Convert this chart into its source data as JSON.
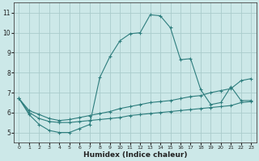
{
  "title": "",
  "xlabel": "Humidex (Indice chaleur)",
  "ylabel": "",
  "bg_color": "#cce8e8",
  "grid_color": "#aacccc",
  "line_color": "#2d7d7d",
  "xlim": [
    -0.5,
    23.5
  ],
  "ylim": [
    4.5,
    11.5
  ],
  "yticks": [
    5,
    6,
    7,
    8,
    9,
    10,
    11
  ],
  "xticks": [
    0,
    1,
    2,
    3,
    4,
    5,
    6,
    7,
    8,
    9,
    10,
    11,
    12,
    13,
    14,
    15,
    16,
    17,
    18,
    19,
    20,
    21,
    22,
    23
  ],
  "line_top_x": [
    0,
    1,
    2,
    3,
    4,
    5,
    6,
    7,
    8,
    9,
    10,
    11,
    12,
    13,
    14,
    15,
    16,
    17,
    18,
    19,
    20,
    21,
    22,
    23
  ],
  "line_top_y": [
    6.7,
    5.9,
    5.4,
    5.1,
    5.0,
    5.0,
    5.2,
    5.4,
    7.75,
    8.8,
    9.6,
    9.95,
    10.0,
    10.9,
    10.85,
    10.25,
    8.65,
    8.7,
    7.15,
    6.4,
    6.5,
    7.3,
    6.6,
    6.6
  ],
  "line_mid_x": [
    0,
    1,
    2,
    3,
    4,
    5,
    6,
    7,
    8,
    9,
    10,
    11,
    12,
    13,
    14,
    15,
    16,
    17,
    18,
    19,
    20,
    21,
    22,
    23
  ],
  "line_mid_y": [
    6.7,
    6.1,
    5.9,
    5.7,
    5.6,
    5.65,
    5.75,
    5.85,
    5.95,
    6.05,
    6.2,
    6.3,
    6.4,
    6.5,
    6.55,
    6.6,
    6.7,
    6.8,
    6.85,
    7.0,
    7.1,
    7.2,
    7.6,
    7.7
  ],
  "line_bot_x": [
    0,
    1,
    2,
    3,
    4,
    5,
    6,
    7,
    8,
    9,
    10,
    11,
    12,
    13,
    14,
    15,
    16,
    17,
    18,
    19,
    20,
    21,
    22,
    23
  ],
  "line_bot_y": [
    6.7,
    6.0,
    5.7,
    5.55,
    5.5,
    5.5,
    5.55,
    5.6,
    5.65,
    5.7,
    5.75,
    5.85,
    5.9,
    5.95,
    6.0,
    6.05,
    6.1,
    6.15,
    6.2,
    6.25,
    6.3,
    6.35,
    6.5,
    6.55
  ]
}
